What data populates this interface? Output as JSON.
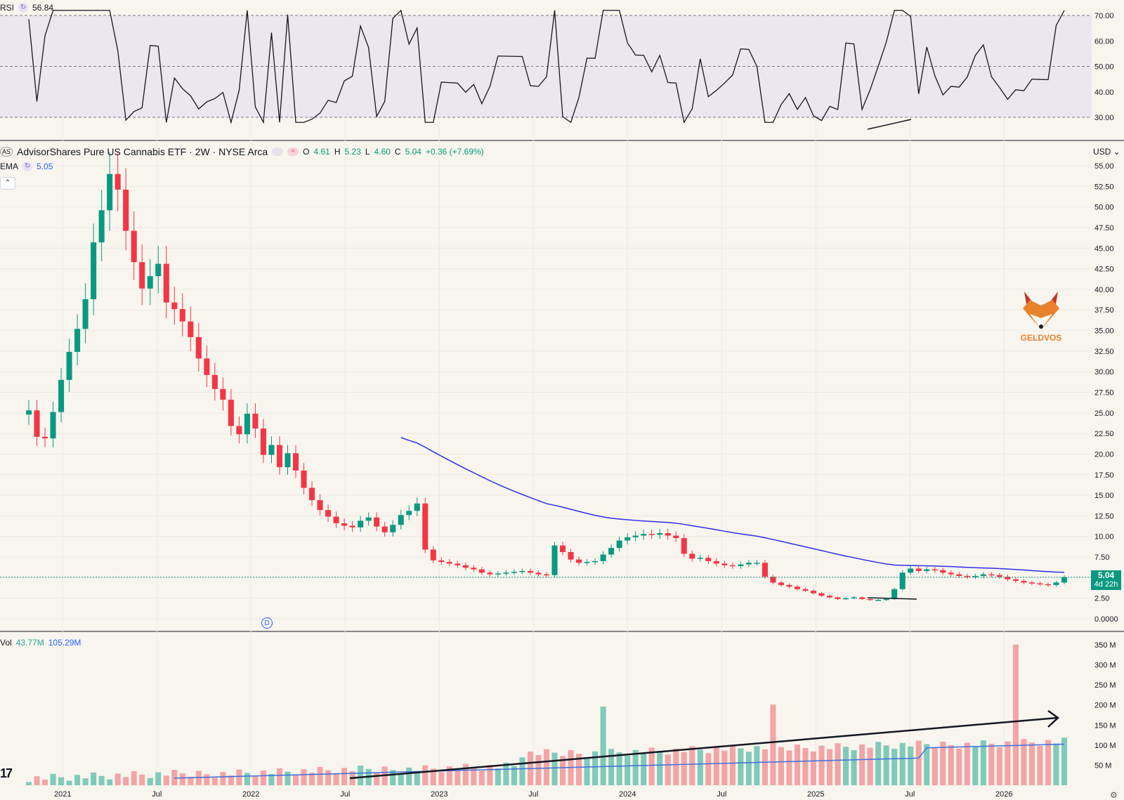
{
  "rsi": {
    "label": "RSI",
    "value": "56.84"
  },
  "header": {
    "title": "AdvisorShares Pure US Cannabis ETF · 2W · NYSE Arca",
    "o_label": "O",
    "o": "4.61",
    "h_label": "H",
    "h": "5.23",
    "l_label": "L",
    "l": "4.60",
    "c_label": "C",
    "c": "5.04",
    "change": "+0.36 (+7.69%)",
    "exchange_badge": "AS",
    "icon_pill": "pill-icon",
    "icon_wave": "wave-icon"
  },
  "ema": {
    "label": "EMA",
    "value": "5.05"
  },
  "volume": {
    "label": "Vol",
    "value": "43.77M",
    "ma_value": "105.29M"
  },
  "currency": "USD",
  "last_price": {
    "price": "5.04",
    "countdown": "4d 22h"
  },
  "marker": "D",
  "watermark": {
    "name": "GELDVOS"
  },
  "colors": {
    "up": "#089981",
    "down": "#f23645",
    "up_vol": "#7fcab9",
    "down_vol": "#f2a4a6",
    "ema": "#2f2fe8",
    "rsi_line": "#131722",
    "rsi_band": "#ebe6f0",
    "vol_ma": "#3f6fe0"
  },
  "chart_data": {
    "type": "candlestick",
    "price_axis": {
      "min": 0,
      "max": 55,
      "ticks": [
        "0.0000",
        "2.50",
        "5.00",
        "7.50",
        "10.00",
        "12.50",
        "15.00",
        "17.50",
        "20.00",
        "22.50",
        "25.00",
        "27.50",
        "30.00",
        "32.50",
        "35.00",
        "37.50",
        "40.00",
        "42.50",
        "45.00",
        "47.50",
        "50.00",
        "52.50",
        "55.00"
      ]
    },
    "rsi_axis": {
      "ticks": [
        "30.00",
        "40.00",
        "50.00",
        "60.00",
        "70.00"
      ],
      "band": [
        30,
        70
      ],
      "mid": 50
    },
    "volume_axis": {
      "ticks": [
        "50 M",
        "100 M",
        "150 M",
        "200 M",
        "250 M",
        "300 M",
        "350 M"
      ]
    },
    "time_axis": {
      "labels": [
        {
          "t": 0.18,
          "text": "2021"
        },
        {
          "t": 0.68,
          "text": "Jul"
        },
        {
          "t": 1.18,
          "text": "2022"
        },
        {
          "t": 1.68,
          "text": "Jul"
        },
        {
          "t": 2.18,
          "text": "2023"
        },
        {
          "t": 2.68,
          "text": "Jul"
        },
        {
          "t": 3.18,
          "text": "2024"
        },
        {
          "t": 3.68,
          "text": "Jul"
        },
        {
          "t": 4.18,
          "text": "2025"
        },
        {
          "t": 4.68,
          "text": "Jul"
        },
        {
          "t": 5.18,
          "text": "2026"
        }
      ]
    },
    "close_path": [
      25.3,
      22.1,
      21.9,
      25.1,
      29.0,
      32.4,
      35.2,
      38.8,
      45.7,
      49.6,
      54.0,
      52.1,
      47.1,
      43.3,
      40.1,
      41.6,
      43.1,
      38.4,
      37.6,
      36.1,
      34.2,
      31.6,
      29.6,
      27.9,
      26.6,
      23.4,
      22.4,
      24.9,
      23.1,
      19.9,
      21.1,
      18.4,
      20.1,
      18.0,
      15.9,
      14.4,
      13.2,
      12.4,
      11.6,
      11.3,
      11.1,
      11.9,
      12.3,
      11.2,
      10.5,
      11.4,
      12.6,
      13.1,
      14.0,
      8.4,
      7.1,
      6.9,
      6.7,
      6.5,
      6.2,
      6.0,
      5.6,
      5.4,
      5.5,
      5.6,
      5.7,
      5.8,
      5.6,
      5.4,
      5.3,
      8.9,
      8.1,
      7.2,
      6.8,
      6.9,
      7.0,
      7.8,
      8.6,
      9.5,
      9.9,
      10.1,
      10.3,
      10.2,
      10.4,
      10.1,
      9.8,
      7.9,
      7.3,
      7.4,
      7.0,
      6.7,
      6.5,
      6.4,
      6.6,
      6.8,
      6.8,
      5.1,
      4.4,
      4.1,
      3.9,
      3.6,
      3.4,
      3.1,
      2.8,
      2.6,
      2.4,
      2.5,
      2.6,
      2.4,
      2.3,
      2.3,
      2.4,
      3.6,
      5.6,
      6.1,
      5.8,
      6.0,
      5.9,
      5.6,
      5.4,
      5.2,
      5.1,
      5.2,
      5.4,
      5.3,
      5.1,
      4.8,
      4.6,
      4.4,
      4.3,
      4.2,
      4.1,
      4.4,
      5.04
    ]
  }
}
